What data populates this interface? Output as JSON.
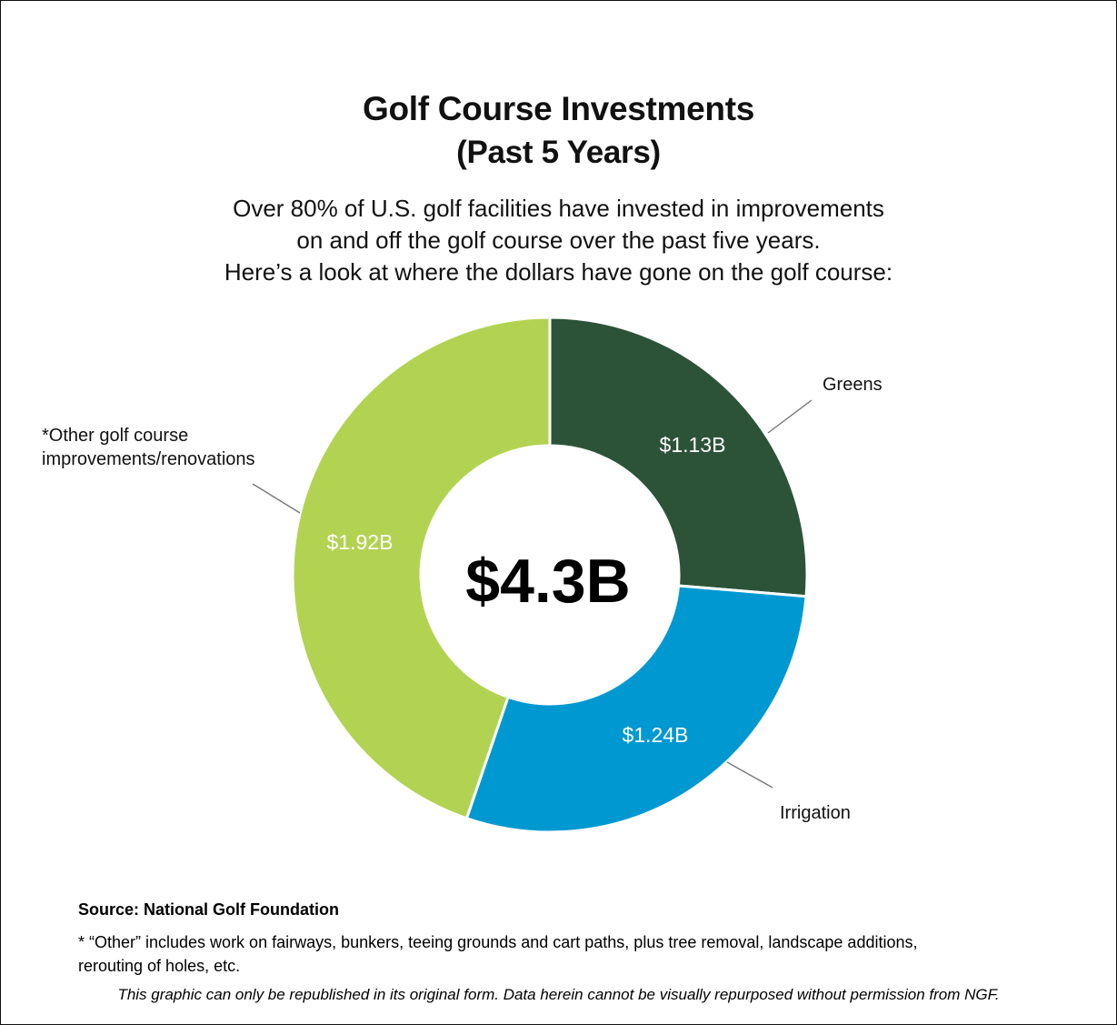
{
  "header": {
    "title_line1": "Golf Course Investments",
    "title_line2": "(Past 5 Years)",
    "subtitle_lines": [
      "Over 80% of U.S. golf facilities have invested in improvements",
      "on and off the golf course over the past five years.",
      "Here’s a look at where the dollars have gone on the golf course:"
    ]
  },
  "chart_data": {
    "type": "pie",
    "center_label": "$4.3B",
    "slices": [
      {
        "label": "Greens",
        "value": 1.13,
        "value_label": "$1.13B",
        "color": "#2c5338"
      },
      {
        "label": "Irrigation",
        "value": 1.24,
        "value_label": "$1.24B",
        "color": "#0098d1"
      },
      {
        "label": "*Other golf course improvements/renovations",
        "value": 1.92,
        "value_label": "$1.92B",
        "color": "#b2d352"
      }
    ],
    "callout_lines": {
      "other": [
        "*Other golf course",
        "improvements/renovations"
      ]
    }
  },
  "footer": {
    "source": "Source: National Golf Foundation",
    "note_lines": [
      "* “Other” includes work on fairways, bunkers, teeing grounds and cart paths, plus tree removal, landscape additions,",
      "rerouting of holes, etc."
    ],
    "disclaimer": "This graphic can only be republished in its original form. Data herein cannot be visually repurposed without permission from NGF."
  }
}
